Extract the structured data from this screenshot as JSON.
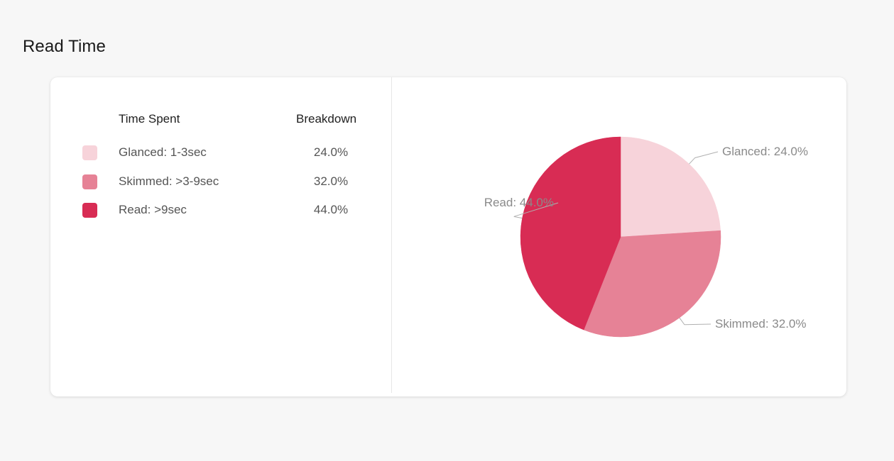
{
  "page": {
    "title": "Read Time"
  },
  "table": {
    "headers": {
      "time_spent": "Time Spent",
      "breakdown": "Breakdown"
    },
    "rows": [
      {
        "label": "Glanced: 1-3sec",
        "value": "24.0%",
        "color": "#f7d3da"
      },
      {
        "label": "Skimmed: >3-9sec",
        "value": "32.0%",
        "color": "#e68296"
      },
      {
        "label": "Read: >9sec",
        "value": "44.0%",
        "color": "#d82c54"
      }
    ]
  },
  "chart_data": {
    "type": "pie",
    "title": "",
    "slices": [
      {
        "name": "Glanced",
        "value": 24.0,
        "label": "Glanced: 24.0%",
        "color": "#f7d3da"
      },
      {
        "name": "Skimmed",
        "value": 32.0,
        "label": "Skimmed: 32.0%",
        "color": "#e68296"
      },
      {
        "name": "Read",
        "value": 44.0,
        "label": "Read: 44.0%",
        "color": "#d82c54"
      }
    ],
    "start_angle_deg": 0,
    "direction": "clockwise"
  }
}
